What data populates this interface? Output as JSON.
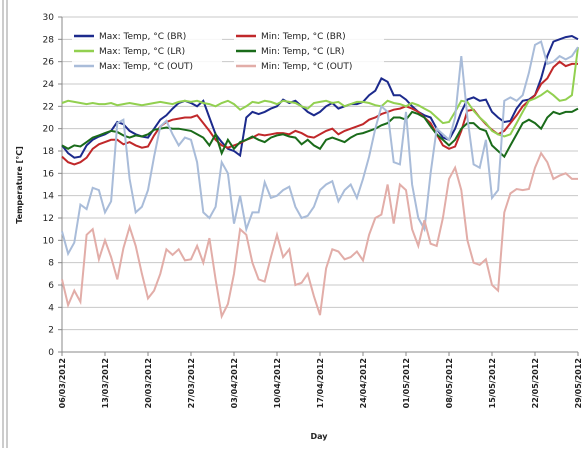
{
  "chart_data": {
    "type": "line",
    "x_label": "Day",
    "y_label": "Temperature [°C]",
    "categories": [
      "06/03/2012",
      null,
      null,
      null,
      null,
      null,
      null,
      "13/03/2012",
      null,
      null,
      null,
      null,
      null,
      null,
      "20/03/2012",
      null,
      null,
      null,
      null,
      null,
      null,
      "27/03/2012",
      null,
      null,
      null,
      null,
      null,
      null,
      "03/04/2012",
      null,
      null,
      null,
      null,
      null,
      null,
      "10/04/2012",
      null,
      null,
      null,
      null,
      null,
      null,
      "17/04/2012",
      null,
      null,
      null,
      null,
      null,
      null,
      "24/04/2012",
      null,
      null,
      null,
      null,
      null,
      null,
      "01/05/2012",
      null,
      null,
      null,
      null,
      null,
      null,
      "08/05/2012",
      null,
      null,
      null,
      null,
      null,
      null,
      "15/05/2012",
      null,
      null,
      null,
      null,
      null,
      null,
      "22/05/2012",
      null,
      null,
      null,
      null,
      null,
      null,
      "29/05/2012"
    ],
    "ylim": [
      0,
      30
    ],
    "yticks": [
      0,
      2,
      4,
      6,
      8,
      10,
      12,
      14,
      16,
      18,
      20,
      22,
      24,
      26,
      28,
      30
    ],
    "grid": true,
    "legend": "upper-left",
    "series": [
      {
        "name": "Max: Temp, °C (BR)",
        "color": "#1c2a8c",
        "values": [
          18.5,
          17.8,
          17.4,
          17.5,
          18.5,
          19.0,
          19.3,
          19.5,
          19.8,
          20.6,
          20.4,
          19.8,
          19.5,
          19.3,
          19.2,
          20.0,
          20.8,
          21.2,
          21.8,
          22.3,
          22.5,
          22.3,
          22.0,
          22.5,
          21.0,
          19.5,
          18.8,
          18.2,
          18.0,
          17.6,
          21.0,
          21.5,
          21.3,
          21.5,
          21.8,
          22.0,
          22.6,
          22.3,
          22.5,
          22.0,
          21.5,
          21.2,
          21.5,
          22.0,
          22.3,
          21.8,
          22.0,
          22.2,
          22.2,
          22.4,
          23.0,
          23.4,
          24.5,
          24.2,
          23.0,
          23.0,
          22.6,
          22.0,
          21.5,
          21.2,
          21.0,
          20.0,
          19.2,
          19.0,
          20.0,
          21.5,
          22.6,
          22.8,
          22.5,
          22.6,
          21.5,
          21.0,
          20.6,
          20.7,
          21.8,
          22.5,
          22.6,
          23.0,
          24.5,
          26.5,
          27.8,
          28.0,
          28.2,
          28.3,
          28.0
        ]
      },
      {
        "name": "Min: Temp, °C (BR)",
        "color": "#c0282a",
        "values": [
          17.5,
          17.0,
          16.8,
          17.0,
          17.4,
          18.2,
          18.6,
          18.8,
          19.0,
          19.0,
          18.6,
          18.8,
          18.5,
          18.3,
          18.4,
          19.4,
          20.2,
          20.6,
          20.8,
          20.9,
          21.0,
          21.0,
          21.2,
          20.5,
          19.8,
          19.0,
          18.5,
          18.3,
          18.5,
          18.7,
          19.0,
          19.2,
          19.5,
          19.4,
          19.5,
          19.6,
          19.6,
          19.5,
          19.8,
          19.6,
          19.3,
          19.2,
          19.5,
          19.8,
          20.0,
          19.5,
          19.8,
          20.0,
          20.2,
          20.4,
          20.8,
          21.0,
          21.3,
          21.5,
          21.7,
          21.8,
          22.0,
          21.8,
          21.5,
          21.0,
          20.5,
          19.5,
          18.5,
          18.2,
          18.4,
          19.8,
          21.6,
          21.7,
          21.0,
          20.4,
          19.9,
          19.5,
          19.8,
          20.5,
          21.2,
          22.0,
          22.5,
          23.0,
          24.0,
          24.5,
          25.5,
          26.0,
          25.6,
          25.8,
          25.8
        ]
      },
      {
        "name": "Max: Temp, °C (LR)",
        "color": "#92d050",
        "values": [
          22.3,
          22.5,
          22.4,
          22.3,
          22.2,
          22.3,
          22.2,
          22.2,
          22.3,
          22.1,
          22.2,
          22.3,
          22.2,
          22.1,
          22.2,
          22.3,
          22.4,
          22.3,
          22.2,
          22.4,
          22.5,
          22.4,
          22.5,
          22.3,
          22.2,
          22.0,
          22.3,
          22.5,
          22.2,
          21.7,
          22.0,
          22.4,
          22.3,
          22.5,
          22.4,
          22.2,
          22.5,
          22.4,
          22.3,
          22.0,
          21.8,
          22.3,
          22.4,
          22.5,
          22.3,
          22.4,
          22.0,
          22.2,
          22.4,
          22.4,
          22.3,
          22.1,
          22.0,
          22.5,
          22.3,
          22.2,
          22.0,
          22.3,
          22.1,
          21.8,
          21.5,
          21.0,
          20.5,
          20.6,
          21.5,
          22.5,
          22.4,
          21.6,
          21.0,
          20.5,
          19.8,
          19.5,
          19.3,
          19.5,
          20.5,
          21.5,
          22.5,
          22.7,
          23.0,
          23.4,
          23.0,
          22.5,
          22.6,
          23.0,
          27.3
        ]
      },
      {
        "name": "Min: Temp, °C (LR)",
        "color": "#1a6b1a",
        "values": [
          18.5,
          18.2,
          18.5,
          18.4,
          18.8,
          19.2,
          19.4,
          19.6,
          19.8,
          19.7,
          19.4,
          19.2,
          19.4,
          19.3,
          19.5,
          19.9,
          20.0,
          20.1,
          20.0,
          20.0,
          19.9,
          19.8,
          19.5,
          19.2,
          18.5,
          19.5,
          17.8,
          19.0,
          18.2,
          18.8,
          19.0,
          19.3,
          19.0,
          18.8,
          19.2,
          19.4,
          19.5,
          19.3,
          19.2,
          18.6,
          19.0,
          18.5,
          18.2,
          19.0,
          19.2,
          19.0,
          18.8,
          19.2,
          19.5,
          19.6,
          19.8,
          20.0,
          20.3,
          20.5,
          21.0,
          21.0,
          20.8,
          21.5,
          21.3,
          21.0,
          20.2,
          19.5,
          19.0,
          18.5,
          19.0,
          20.0,
          20.5,
          20.5,
          20.0,
          19.8,
          18.5,
          18.0,
          17.5,
          18.5,
          19.5,
          20.5,
          20.8,
          20.5,
          20.0,
          21.0,
          21.5,
          21.3,
          21.5,
          21.5,
          21.8
        ]
      },
      {
        "name": "Max: Temp, °C (OUT)",
        "color": "#a9bcd9",
        "values": [
          10.8,
          8.8,
          9.8,
          13.2,
          12.8,
          14.7,
          14.5,
          12.5,
          13.5,
          20.5,
          20.8,
          15.5,
          12.5,
          13.0,
          14.5,
          17.5,
          20.2,
          20.7,
          19.5,
          18.5,
          19.2,
          19.0,
          17.0,
          12.5,
          12.0,
          13.0,
          17.0,
          16.0,
          11.5,
          14.0,
          11.0,
          12.5,
          12.5,
          15.2,
          13.8,
          14.0,
          14.5,
          14.8,
          13.0,
          12.0,
          12.2,
          13.0,
          14.5,
          15.0,
          15.3,
          13.5,
          14.5,
          15.0,
          13.8,
          15.5,
          17.5,
          20.0,
          22.0,
          21.5,
          17.0,
          16.8,
          21.5,
          15.0,
          12.0,
          11.0,
          16.0,
          20.0,
          19.5,
          19.0,
          21.0,
          26.5,
          21.0,
          16.8,
          16.5,
          19.0,
          13.8,
          14.5,
          22.5,
          22.8,
          22.5,
          23.0,
          25.0,
          27.5,
          27.8,
          25.8,
          26.0,
          26.5,
          26.2,
          26.5,
          27.3
        ]
      },
      {
        "name": "Min: Temp, °C (OUT)",
        "color": "#e2ada8",
        "values": [
          6.5,
          4.2,
          5.5,
          4.5,
          10.5,
          11.0,
          8.3,
          10.0,
          8.5,
          6.5,
          9.3,
          11.2,
          9.5,
          7.0,
          4.8,
          5.5,
          7.0,
          9.2,
          8.7,
          9.2,
          8.2,
          8.3,
          9.5,
          8.0,
          10.2,
          6.5,
          3.2,
          4.3,
          7.0,
          11.0,
          10.5,
          8.0,
          6.5,
          6.3,
          8.5,
          10.5,
          8.5,
          9.2,
          6.0,
          6.2,
          7.0,
          5.0,
          3.3,
          7.5,
          9.2,
          9.0,
          8.3,
          8.5,
          9.0,
          8.2,
          10.5,
          12.0,
          12.3,
          15.0,
          11.5,
          15.0,
          14.5,
          11.0,
          9.5,
          11.8,
          9.7,
          9.5,
          12.0,
          15.5,
          16.5,
          14.5,
          10.0,
          8.0,
          7.8,
          8.3,
          6.0,
          5.5,
          12.5,
          14.2,
          14.6,
          14.5,
          14.6,
          16.5,
          17.8,
          17.0,
          15.5,
          15.8,
          16.0,
          15.5,
          15.5
        ]
      }
    ]
  }
}
